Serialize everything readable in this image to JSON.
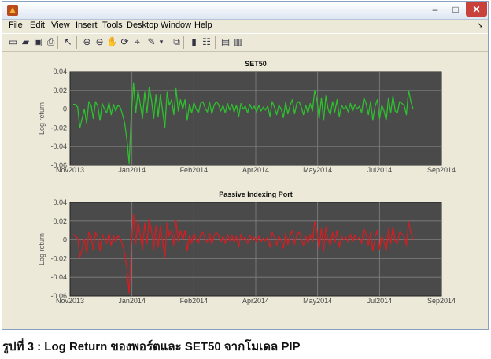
{
  "caption": "รูปที่ 3 : Log Return ของพอร์ตและ SET50 จากโมเดล PIP",
  "window": {
    "minimize_glyph": "–",
    "maximize_glyph": "□",
    "close_glyph": "✕"
  },
  "menu": {
    "file": "File",
    "edit": "Edit",
    "view": "View",
    "insert": "Insert",
    "tools": "Tools",
    "desktop": "Desktop",
    "window": "Window",
    "help": "Help"
  },
  "toolbar": [
    {
      "name": "new-figure-icon",
      "glyph": "▭"
    },
    {
      "name": "open-file-icon",
      "glyph": "▰"
    },
    {
      "name": "save-icon",
      "glyph": "▣"
    },
    {
      "name": "print-icon",
      "glyph": "⎙"
    },
    {
      "name": "pointer-icon",
      "glyph": "↖"
    },
    {
      "name": "zoom-in-icon",
      "glyph": "⊕"
    },
    {
      "name": "zoom-out-icon",
      "glyph": "⊖"
    },
    {
      "name": "pan-icon",
      "glyph": "✋"
    },
    {
      "name": "rotate-icon",
      "glyph": "⟳"
    },
    {
      "name": "data-cursor-icon",
      "glyph": "⌖"
    },
    {
      "name": "brush-icon",
      "glyph": "✎"
    },
    {
      "name": "brush-dropdown-icon",
      "glyph": "▾"
    },
    {
      "name": "link-plot-icon",
      "glyph": "⧉"
    },
    {
      "name": "colorbar-icon",
      "glyph": "▮"
    },
    {
      "name": "legend-icon",
      "glyph": "☷"
    },
    {
      "name": "hide-tools-icon",
      "glyph": "▤"
    },
    {
      "name": "show-tools-icon",
      "glyph": "▥"
    }
  ],
  "colors": {
    "axes_bg": "#4a4a4a",
    "grid": "#808080",
    "set50_line": "#2ec02e",
    "pip_line": "#d21e23",
    "window_bg": "#ece9d8"
  },
  "chart_data": [
    {
      "type": "line",
      "title": "SET50",
      "ylabel": "Log return",
      "xlabel": "",
      "ylim": [
        -0.06,
        0.04
      ],
      "yticks": [
        "0.04",
        "0.02",
        "0",
        "-0.02",
        "-0.04",
        "-0.06"
      ],
      "xticks": [
        "Nov2013",
        "Jan2014",
        "Feb2014",
        "Apr2014",
        "May2014",
        "Jul2014",
        "Sep2014"
      ],
      "grid": true,
      "series": [
        {
          "values": [
            0.005,
            0.005,
            0.002,
            -0.02,
            -0.01,
            0.0,
            -0.015,
            0.008,
            0.004,
            -0.01,
            0.008,
            0.003,
            -0.012,
            0.006,
            0.0,
            -0.004,
            0.007,
            -0.006,
            0.005,
            -0.002,
            0.004,
            0.002,
            -0.005,
            -0.015,
            -0.032,
            -0.058,
            -0.005,
            0.028,
            -0.004,
            0.02,
            0.005,
            -0.01,
            0.018,
            -0.004,
            0.023,
            0.01,
            -0.01,
            0.015,
            -0.008,
            0.015,
            -0.002,
            -0.02,
            0.018,
            0.004,
            0.01,
            -0.006,
            0.022,
            -0.002,
            0.01,
            0.0,
            0.01,
            -0.012,
            0.005,
            -0.004,
            0.007,
            0.0,
            -0.004,
            0.006,
            0.008,
            0.001,
            -0.003,
            0.007,
            -0.005,
            0.004,
            0.008,
            0.005,
            -0.002,
            0.004,
            -0.004,
            0.006,
            -0.001,
            0.005,
            -0.003,
            0.004,
            -0.008,
            0.006,
            0.0,
            0.003,
            -0.004,
            0.005,
            0.0,
            0.003,
            -0.003,
            0.004,
            -0.002,
            0.002,
            -0.001,
            0.003,
            -0.008,
            0.008,
            0.002,
            -0.006,
            0.004,
            0.0,
            -0.009,
            0.007,
            -0.005,
            0.004,
            0.01,
            -0.005,
            0.006,
            0.008,
            0.002,
            -0.006,
            0.004,
            -0.004,
            0.006,
            -0.002,
            0.02,
            0.01,
            -0.01,
            0.012,
            -0.012,
            0.014,
            0.0,
            -0.006,
            0.008,
            -0.003,
            0.01,
            -0.008,
            0.004,
            0.0,
            0.003,
            -0.003,
            0.006,
            -0.002,
            0.005,
            0.0,
            0.003,
            -0.004,
            0.012,
            0.006,
            -0.006,
            0.008,
            -0.012,
            0.003,
            0.01,
            -0.01,
            0.004,
            -0.002,
            -0.012,
            0.012,
            -0.004,
            0.014,
            -0.002,
            -0.004,
            0.008,
            0.006,
            0.004,
            -0.006,
            0.02,
            0.008,
            0.0
          ]
        }
      ]
    },
    {
      "type": "line",
      "title": "Passive Indexing Port",
      "ylabel": "Log return",
      "xlabel": "",
      "ylim": [
        -0.06,
        0.04
      ],
      "yticks": [
        "0.04",
        "0.02",
        "0",
        "-0.02",
        "-0.04",
        "-0.06"
      ],
      "xticks": [
        "Nov2013",
        "Jan2014",
        "Feb2014",
        "Apr2014",
        "May2014",
        "Jul2014",
        "Sep2014"
      ],
      "grid": true,
      "series": [
        {
          "values": [
            0.006,
            0.004,
            0.002,
            -0.019,
            -0.01,
            0.001,
            -0.014,
            0.008,
            0.004,
            -0.011,
            0.008,
            0.003,
            -0.012,
            0.006,
            0.0,
            -0.004,
            0.007,
            -0.006,
            0.005,
            -0.002,
            0.004,
            0.002,
            -0.005,
            -0.014,
            -0.03,
            -0.057,
            -0.005,
            0.027,
            -0.004,
            0.02,
            0.005,
            -0.01,
            0.018,
            -0.004,
            0.022,
            0.01,
            -0.01,
            0.015,
            -0.008,
            0.015,
            -0.002,
            -0.019,
            0.018,
            0.004,
            0.01,
            -0.006,
            0.021,
            -0.002,
            0.01,
            0.0,
            0.01,
            -0.012,
            0.005,
            -0.004,
            0.007,
            0.0,
            -0.004,
            0.006,
            0.008,
            0.001,
            -0.003,
            0.007,
            -0.005,
            0.004,
            0.008,
            0.005,
            -0.002,
            0.004,
            -0.004,
            0.006,
            -0.001,
            0.005,
            -0.003,
            0.004,
            -0.008,
            0.006,
            0.0,
            0.003,
            -0.004,
            0.005,
            0.0,
            0.003,
            -0.003,
            0.004,
            -0.002,
            0.002,
            -0.001,
            0.003,
            -0.008,
            0.008,
            0.002,
            -0.006,
            0.004,
            0.0,
            -0.009,
            0.007,
            -0.005,
            0.004,
            0.01,
            -0.005,
            0.006,
            0.008,
            0.002,
            -0.006,
            0.004,
            -0.004,
            0.006,
            -0.002,
            0.019,
            0.01,
            -0.01,
            0.012,
            -0.012,
            0.014,
            0.0,
            -0.006,
            0.008,
            -0.003,
            0.01,
            -0.008,
            0.004,
            0.0,
            0.003,
            -0.003,
            0.006,
            -0.002,
            0.005,
            0.0,
            0.003,
            -0.004,
            0.012,
            0.006,
            -0.006,
            0.008,
            -0.012,
            0.003,
            0.01,
            -0.01,
            0.004,
            -0.002,
            -0.012,
            0.012,
            -0.004,
            0.014,
            -0.002,
            -0.004,
            0.008,
            0.006,
            0.004,
            -0.006,
            0.019,
            0.008,
            0.0
          ]
        }
      ]
    }
  ]
}
